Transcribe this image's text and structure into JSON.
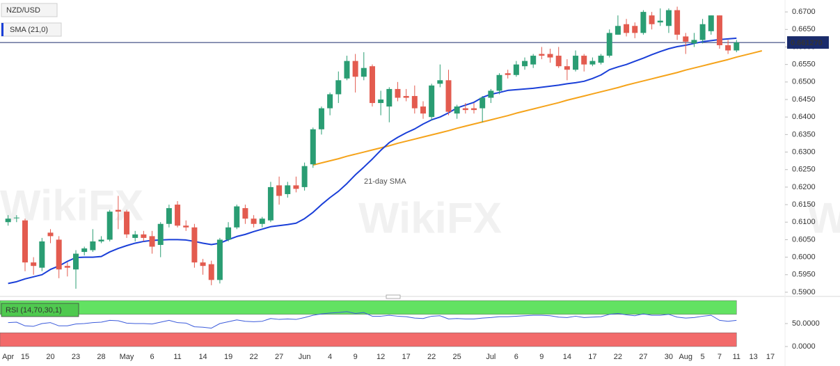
{
  "chart_data": [
    {
      "type": "candlestick",
      "title": "NZD/USD",
      "watermark": "WikiFX",
      "categories": [
        "Apr",
        null,
        "15",
        null,
        null,
        "20",
        null,
        null,
        "23",
        null,
        null,
        "28",
        null,
        null,
        "May",
        null,
        null,
        "6",
        null,
        null,
        "11",
        null,
        null,
        "14",
        null,
        null,
        "19",
        null,
        null,
        "22",
        null,
        null,
        "27",
        null,
        null,
        "Jun",
        null,
        null,
        "4",
        null,
        null,
        "9",
        null,
        null,
        "12",
        null,
        null,
        "17",
        null,
        null,
        "22",
        null,
        null,
        "25",
        null,
        null,
        null,
        "Jul",
        null,
        null,
        "6",
        null,
        null,
        "9",
        null,
        null,
        "14",
        null,
        null,
        "17",
        null,
        null,
        "22",
        null,
        null,
        "27",
        null,
        null,
        "30",
        null,
        "Aug",
        null,
        "5",
        null,
        "7",
        null,
        "11",
        null,
        "13",
        null,
        "17"
      ],
      "open": [
        0.61,
        0.6112,
        0.6105,
        0.5985,
        0.597,
        0.607,
        0.605,
        0.5975,
        0.5965,
        0.6015,
        0.602,
        0.6045,
        0.605,
        0.6135,
        0.613,
        0.6055,
        0.6065,
        0.606,
        0.6035,
        0.6095,
        0.615,
        0.609,
        0.6085,
        0.5985,
        0.598,
        0.5935,
        0.605,
        0.6085,
        0.614,
        0.611,
        0.6095,
        0.6105,
        0.6205,
        0.618,
        0.6205,
        0.62,
        0.6265,
        0.6365,
        0.6425,
        0.6465,
        0.651,
        0.656,
        0.6515,
        0.6545,
        0.644,
        0.643,
        0.648,
        0.646,
        0.646,
        0.643,
        0.64,
        0.6495,
        0.6505,
        0.641,
        0.6425,
        0.6425,
        0.6425,
        0.6455,
        0.6475,
        0.6525,
        0.652,
        0.6545,
        0.655,
        0.658,
        0.658,
        0.6575,
        0.6545,
        0.6535,
        0.6575,
        0.655,
        0.6555,
        0.6575,
        0.6635,
        0.6665,
        0.666,
        0.664,
        0.669,
        0.667,
        0.666,
        0.6705,
        0.663,
        0.661,
        0.662,
        0.6645,
        0.669,
        0.6605,
        0.659,
        null,
        null,
        null,
        null
      ],
      "high": [
        0.612,
        0.612,
        0.611,
        0.6,
        0.6055,
        0.608,
        0.606,
        0.5985,
        0.602,
        0.603,
        0.608,
        0.606,
        0.6135,
        0.6175,
        0.6135,
        0.6075,
        0.6075,
        0.6075,
        0.61,
        0.615,
        0.616,
        0.6105,
        0.6095,
        0.5995,
        0.599,
        0.6055,
        0.61,
        0.615,
        0.615,
        0.612,
        0.6115,
        0.6215,
        0.623,
        0.6215,
        0.623,
        0.627,
        0.637,
        0.643,
        0.647,
        0.653,
        0.6575,
        0.658,
        0.6585,
        0.655,
        0.6475,
        0.6485,
        0.65,
        0.648,
        0.649,
        0.6445,
        0.6495,
        0.655,
        0.6535,
        0.6435,
        0.644,
        0.644,
        0.646,
        0.648,
        0.6525,
        0.6535,
        0.656,
        0.657,
        0.658,
        0.66,
        0.6595,
        0.66,
        0.6565,
        0.659,
        0.658,
        0.657,
        0.658,
        0.665,
        0.669,
        0.668,
        0.667,
        0.6705,
        0.67,
        0.671,
        0.671,
        0.6715,
        0.664,
        0.664,
        0.668,
        0.669,
        0.669,
        0.662,
        0.662,
        null,
        null,
        null,
        null
      ],
      "low": [
        0.609,
        0.61,
        0.596,
        0.595,
        0.596,
        0.604,
        0.594,
        0.5945,
        0.591,
        0.6005,
        0.6015,
        0.604,
        0.6045,
        0.608,
        0.6055,
        0.6045,
        0.6045,
        0.601,
        0.6,
        0.6085,
        0.6085,
        0.6075,
        0.597,
        0.595,
        0.592,
        0.5925,
        0.6045,
        0.608,
        0.6095,
        0.6085,
        0.6085,
        0.61,
        0.615,
        0.617,
        0.6185,
        0.619,
        0.6255,
        0.635,
        0.6405,
        0.644,
        0.6505,
        0.647,
        0.6505,
        0.643,
        0.6405,
        0.6385,
        0.6445,
        0.6445,
        0.641,
        0.6395,
        0.639,
        0.6485,
        0.6405,
        0.6395,
        0.641,
        0.641,
        0.6385,
        0.644,
        0.6465,
        0.651,
        0.6515,
        0.6535,
        0.654,
        0.6565,
        0.6555,
        0.654,
        0.6505,
        0.653,
        0.653,
        0.6545,
        0.655,
        0.657,
        0.6635,
        0.663,
        0.6625,
        0.6635,
        0.665,
        0.666,
        0.664,
        0.662,
        0.658,
        0.66,
        0.661,
        0.6635,
        0.6595,
        0.658,
        0.6585,
        null,
        null,
        null,
        null
      ],
      "close": [
        0.611,
        0.6113,
        0.5985,
        0.5975,
        0.6045,
        0.606,
        0.5965,
        0.597,
        0.601,
        0.6025,
        0.6045,
        0.605,
        0.613,
        0.613,
        0.6065,
        0.6065,
        0.6055,
        0.603,
        0.6095,
        0.614,
        0.609,
        0.6085,
        0.5985,
        0.5975,
        0.5935,
        0.605,
        0.6085,
        0.6145,
        0.611,
        0.6095,
        0.611,
        0.62,
        0.6175,
        0.6205,
        0.6195,
        0.626,
        0.6365,
        0.6425,
        0.6465,
        0.6505,
        0.656,
        0.6515,
        0.654,
        0.644,
        0.645,
        0.648,
        0.6455,
        0.6455,
        0.6425,
        0.641,
        0.649,
        0.6505,
        0.6415,
        0.643,
        0.642,
        0.642,
        0.6455,
        0.6475,
        0.652,
        0.652,
        0.655,
        0.656,
        0.6575,
        0.6575,
        0.657,
        0.6545,
        0.6535,
        0.6575,
        0.655,
        0.656,
        0.6575,
        0.664,
        0.666,
        0.664,
        0.664,
        0.67,
        0.6665,
        0.6675,
        0.6705,
        0.6635,
        0.6615,
        0.662,
        0.6665,
        0.669,
        0.6605,
        0.659,
        0.66127,
        null,
        null,
        null,
        null
      ],
      "up_color": "#2a9d73",
      "down_color": "#e35b4f",
      "series": [
        {
          "name": "SMA (21,0)",
          "color": "#1a3fd8",
          "values": [
            0.5925,
            0.593,
            0.5938,
            0.5944,
            0.595,
            0.5965,
            0.5975,
            0.5988,
            0.5999,
            0.6,
            0.6,
            0.6002,
            0.6015,
            0.6025,
            0.6033,
            0.604,
            0.6045,
            0.6048,
            0.6049,
            0.605,
            0.605,
            0.6049,
            0.6045,
            0.604,
            0.6036,
            0.604,
            0.605,
            0.6059,
            0.6065,
            0.6073,
            0.608,
            0.6087,
            0.609,
            0.6093,
            0.6097,
            0.611,
            0.6128,
            0.615,
            0.617,
            0.6188,
            0.621,
            0.6235,
            0.6257,
            0.628,
            0.6305,
            0.6327,
            0.6342,
            0.6355,
            0.6366,
            0.638,
            0.6392,
            0.64,
            0.6412,
            0.6426,
            0.6434,
            0.6442,
            0.6456,
            0.6465,
            0.647,
            0.6476,
            0.6478,
            0.648,
            0.6482,
            0.6485,
            0.6488,
            0.6491,
            0.6495,
            0.6498,
            0.6502,
            0.651,
            0.652,
            0.6535,
            0.6543,
            0.655,
            0.6559,
            0.6568,
            0.6578,
            0.6587,
            0.6595,
            0.6601,
            0.6605,
            0.661,
            0.6615,
            0.6618,
            0.6621,
            0.6623,
            0.6625,
            null,
            null,
            null,
            null
          ]
        }
      ],
      "trendline": {
        "color": "#f5a31a",
        "values": [
          null,
          null,
          null,
          null,
          null,
          null,
          null,
          null,
          null,
          null,
          null,
          null,
          null,
          null,
          null,
          null,
          null,
          null,
          null,
          null,
          null,
          null,
          null,
          null,
          null,
          null,
          null,
          null,
          null,
          null,
          null,
          null,
          null,
          null,
          null,
          null,
          0.6263,
          0.6269,
          0.6275,
          0.6281,
          0.6288,
          0.6294,
          0.63,
          0.6306,
          0.6312,
          0.6318,
          0.6325,
          0.6331,
          0.6337,
          0.6343,
          0.6349,
          0.6355,
          0.6361,
          0.6368,
          0.6374,
          0.638,
          0.6386,
          0.6392,
          0.6398,
          0.6404,
          0.6411,
          0.6417,
          0.6423,
          0.6429,
          0.6435,
          0.6441,
          0.6448,
          0.6454,
          0.646,
          0.6466,
          0.6472,
          0.6478,
          0.6484,
          0.6491,
          0.6497,
          0.6503,
          0.6509,
          0.6515,
          0.6521,
          0.6527,
          0.6534,
          0.654,
          0.6546,
          0.6552,
          0.6558,
          0.6564,
          0.6571,
          0.6577,
          0.6583,
          0.6589,
          null
        ]
      },
      "annotations": [
        {
          "text": "21-day SMA"
        }
      ],
      "last_price": {
        "value": 0.66127,
        "label": "0.661270",
        "color": "#1a2b6b"
      },
      "ylim": [
        0.589,
        0.6734
      ],
      "yticks": [
        {
          "value": 0.59,
          "label": "0.5900"
        },
        {
          "value": 0.595,
          "label": "0.5950"
        },
        {
          "value": 0.6,
          "label": "0.6000"
        },
        {
          "value": 0.605,
          "label": "0.6050"
        },
        {
          "value": 0.61,
          "label": "0.6100"
        },
        {
          "value": 0.615,
          "label": "0.6150"
        },
        {
          "value": 0.62,
          "label": "0.6200"
        },
        {
          "value": 0.625,
          "label": "0.6250"
        },
        {
          "value": 0.63,
          "label": "0.6300"
        },
        {
          "value": 0.635,
          "label": "0.6350"
        },
        {
          "value": 0.64,
          "label": "0.6400"
        },
        {
          "value": 0.645,
          "label": "0.6450"
        },
        {
          "value": 0.65,
          "label": "0.6500"
        },
        {
          "value": 0.655,
          "label": "0.6550"
        },
        {
          "value": 0.66,
          "label": "0.6600"
        },
        {
          "value": 0.665,
          "label": "0.6650"
        },
        {
          "value": 0.67,
          "label": "0.6700"
        }
      ],
      "grid": false
    },
    {
      "type": "line",
      "title": "RSI (14,70,30,1)",
      "color": "#3b5bdb",
      "values": [
        52,
        53,
        45,
        44,
        50,
        52,
        45,
        45,
        49,
        50,
        52,
        53,
        57,
        56,
        51,
        50,
        50,
        49,
        53,
        57,
        52,
        51,
        43,
        42,
        40,
        50,
        54,
        58,
        55,
        54,
        55,
        61,
        59,
        60,
        59,
        63,
        68,
        71,
        73,
        74,
        76,
        72,
        74,
        66,
        66,
        68,
        66,
        65,
        62,
        61,
        66,
        67,
        60,
        61,
        60,
        60,
        62,
        63,
        65,
        65,
        66,
        67,
        68,
        68,
        67,
        64,
        63,
        66,
        63,
        64,
        65,
        70,
        72,
        69,
        67,
        71,
        68,
        68,
        70,
        64,
        62,
        63,
        66,
        68,
        57,
        55,
        57,
        null,
        null,
        null,
        null
      ],
      "bands": [
        {
          "from": 70,
          "to": 100,
          "color": "#62e262"
        },
        {
          "from": 0,
          "to": 30,
          "color": "#f26a6a"
        }
      ],
      "ylim": [
        0,
        100
      ],
      "yticks": [
        {
          "value": 50,
          "label": "50.0000"
        },
        {
          "value": 0,
          "label": "0.0000"
        }
      ]
    }
  ]
}
